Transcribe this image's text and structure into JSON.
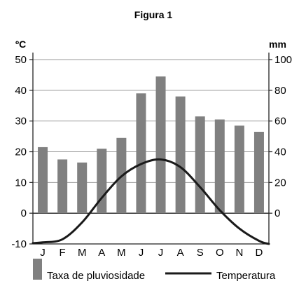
{
  "chart_data": {
    "type": "bar+line",
    "title": "Figura 1",
    "categories": [
      "J",
      "F",
      "M",
      "A",
      "M",
      "J",
      "J",
      "A",
      "S",
      "O",
      "N",
      "D"
    ],
    "left_axis": {
      "unit": "ºC",
      "range": [
        -10,
        50
      ],
      "ticks": [
        -10,
        0,
        10,
        20,
        30,
        40,
        50
      ]
    },
    "right_axis": {
      "unit": "mm",
      "range": [
        -20,
        100
      ],
      "ticks": [
        0,
        20,
        40,
        60,
        80,
        100
      ]
    },
    "series": [
      {
        "name": "Taxa de pluviosidade",
        "type": "bar",
        "axis": "right",
        "color": "#808080",
        "values": [
          43,
          35,
          33,
          42,
          49,
          78,
          89,
          76,
          63,
          61,
          57,
          53
        ]
      },
      {
        "name": "Temperatura",
        "type": "line",
        "axis": "left",
        "color": "#1a1a1a",
        "values": [
          -9.5,
          -8.5,
          -3,
          5,
          12,
          16,
          17.5,
          15,
          8.5,
          1,
          -5,
          -9
        ]
      }
    ],
    "grid": "horizontal",
    "legend_position": "bottom"
  }
}
